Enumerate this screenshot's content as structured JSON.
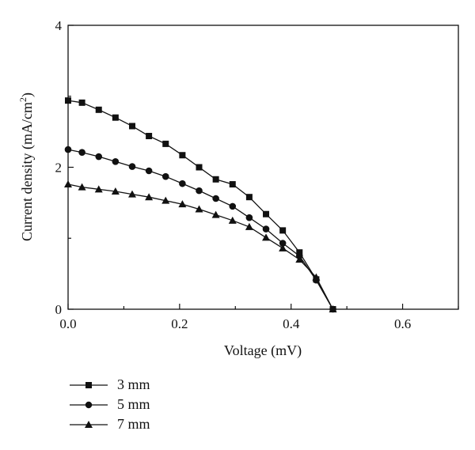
{
  "chart_data": {
    "type": "line",
    "xlabel": "Voltage (mV)",
    "ylabel_main": "Current density (mA/cm",
    "ylabel_sup": "2",
    "ylabel_tail": ")",
    "xlim": [
      0,
      0.7
    ],
    "ylim": [
      0,
      4
    ],
    "x_ticks": [
      "0.0",
      "0.2",
      "0.4",
      "0.6"
    ],
    "x_tick_values": [
      0,
      0.2,
      0.4,
      0.6
    ],
    "y_ticks": [
      "0",
      "2",
      "4"
    ],
    "y_tick_values": [
      0,
      2,
      4
    ],
    "grid": false,
    "legend_position": "below-left",
    "series": [
      {
        "name": "3 mm",
        "marker": "square",
        "x": [
          0.0,
          0.025,
          0.055,
          0.085,
          0.115,
          0.145,
          0.175,
          0.205,
          0.235,
          0.265,
          0.295,
          0.325,
          0.355,
          0.385,
          0.415,
          0.445,
          0.475
        ],
        "y": [
          2.94,
          2.91,
          2.81,
          2.7,
          2.58,
          2.44,
          2.33,
          2.17,
          2.0,
          1.83,
          1.76,
          1.58,
          1.34,
          1.11,
          0.8,
          0.42,
          0.0
        ]
      },
      {
        "name": "5 mm",
        "marker": "circle",
        "x": [
          0.0,
          0.025,
          0.055,
          0.085,
          0.115,
          0.145,
          0.175,
          0.205,
          0.235,
          0.265,
          0.295,
          0.325,
          0.355,
          0.385,
          0.415,
          0.445,
          0.475
        ],
        "y": [
          2.25,
          2.21,
          2.15,
          2.08,
          2.01,
          1.95,
          1.87,
          1.77,
          1.67,
          1.56,
          1.45,
          1.29,
          1.13,
          0.93,
          0.75,
          0.41,
          0.0
        ]
      },
      {
        "name": "7 mm",
        "marker": "triangle",
        "x": [
          0.0,
          0.025,
          0.055,
          0.085,
          0.115,
          0.145,
          0.175,
          0.205,
          0.235,
          0.265,
          0.295,
          0.325,
          0.355,
          0.385,
          0.415,
          0.445,
          0.475
        ],
        "y": [
          1.76,
          1.72,
          1.69,
          1.66,
          1.62,
          1.58,
          1.53,
          1.48,
          1.41,
          1.33,
          1.25,
          1.16,
          1.01,
          0.86,
          0.7,
          0.45,
          0.0
        ]
      }
    ]
  }
}
